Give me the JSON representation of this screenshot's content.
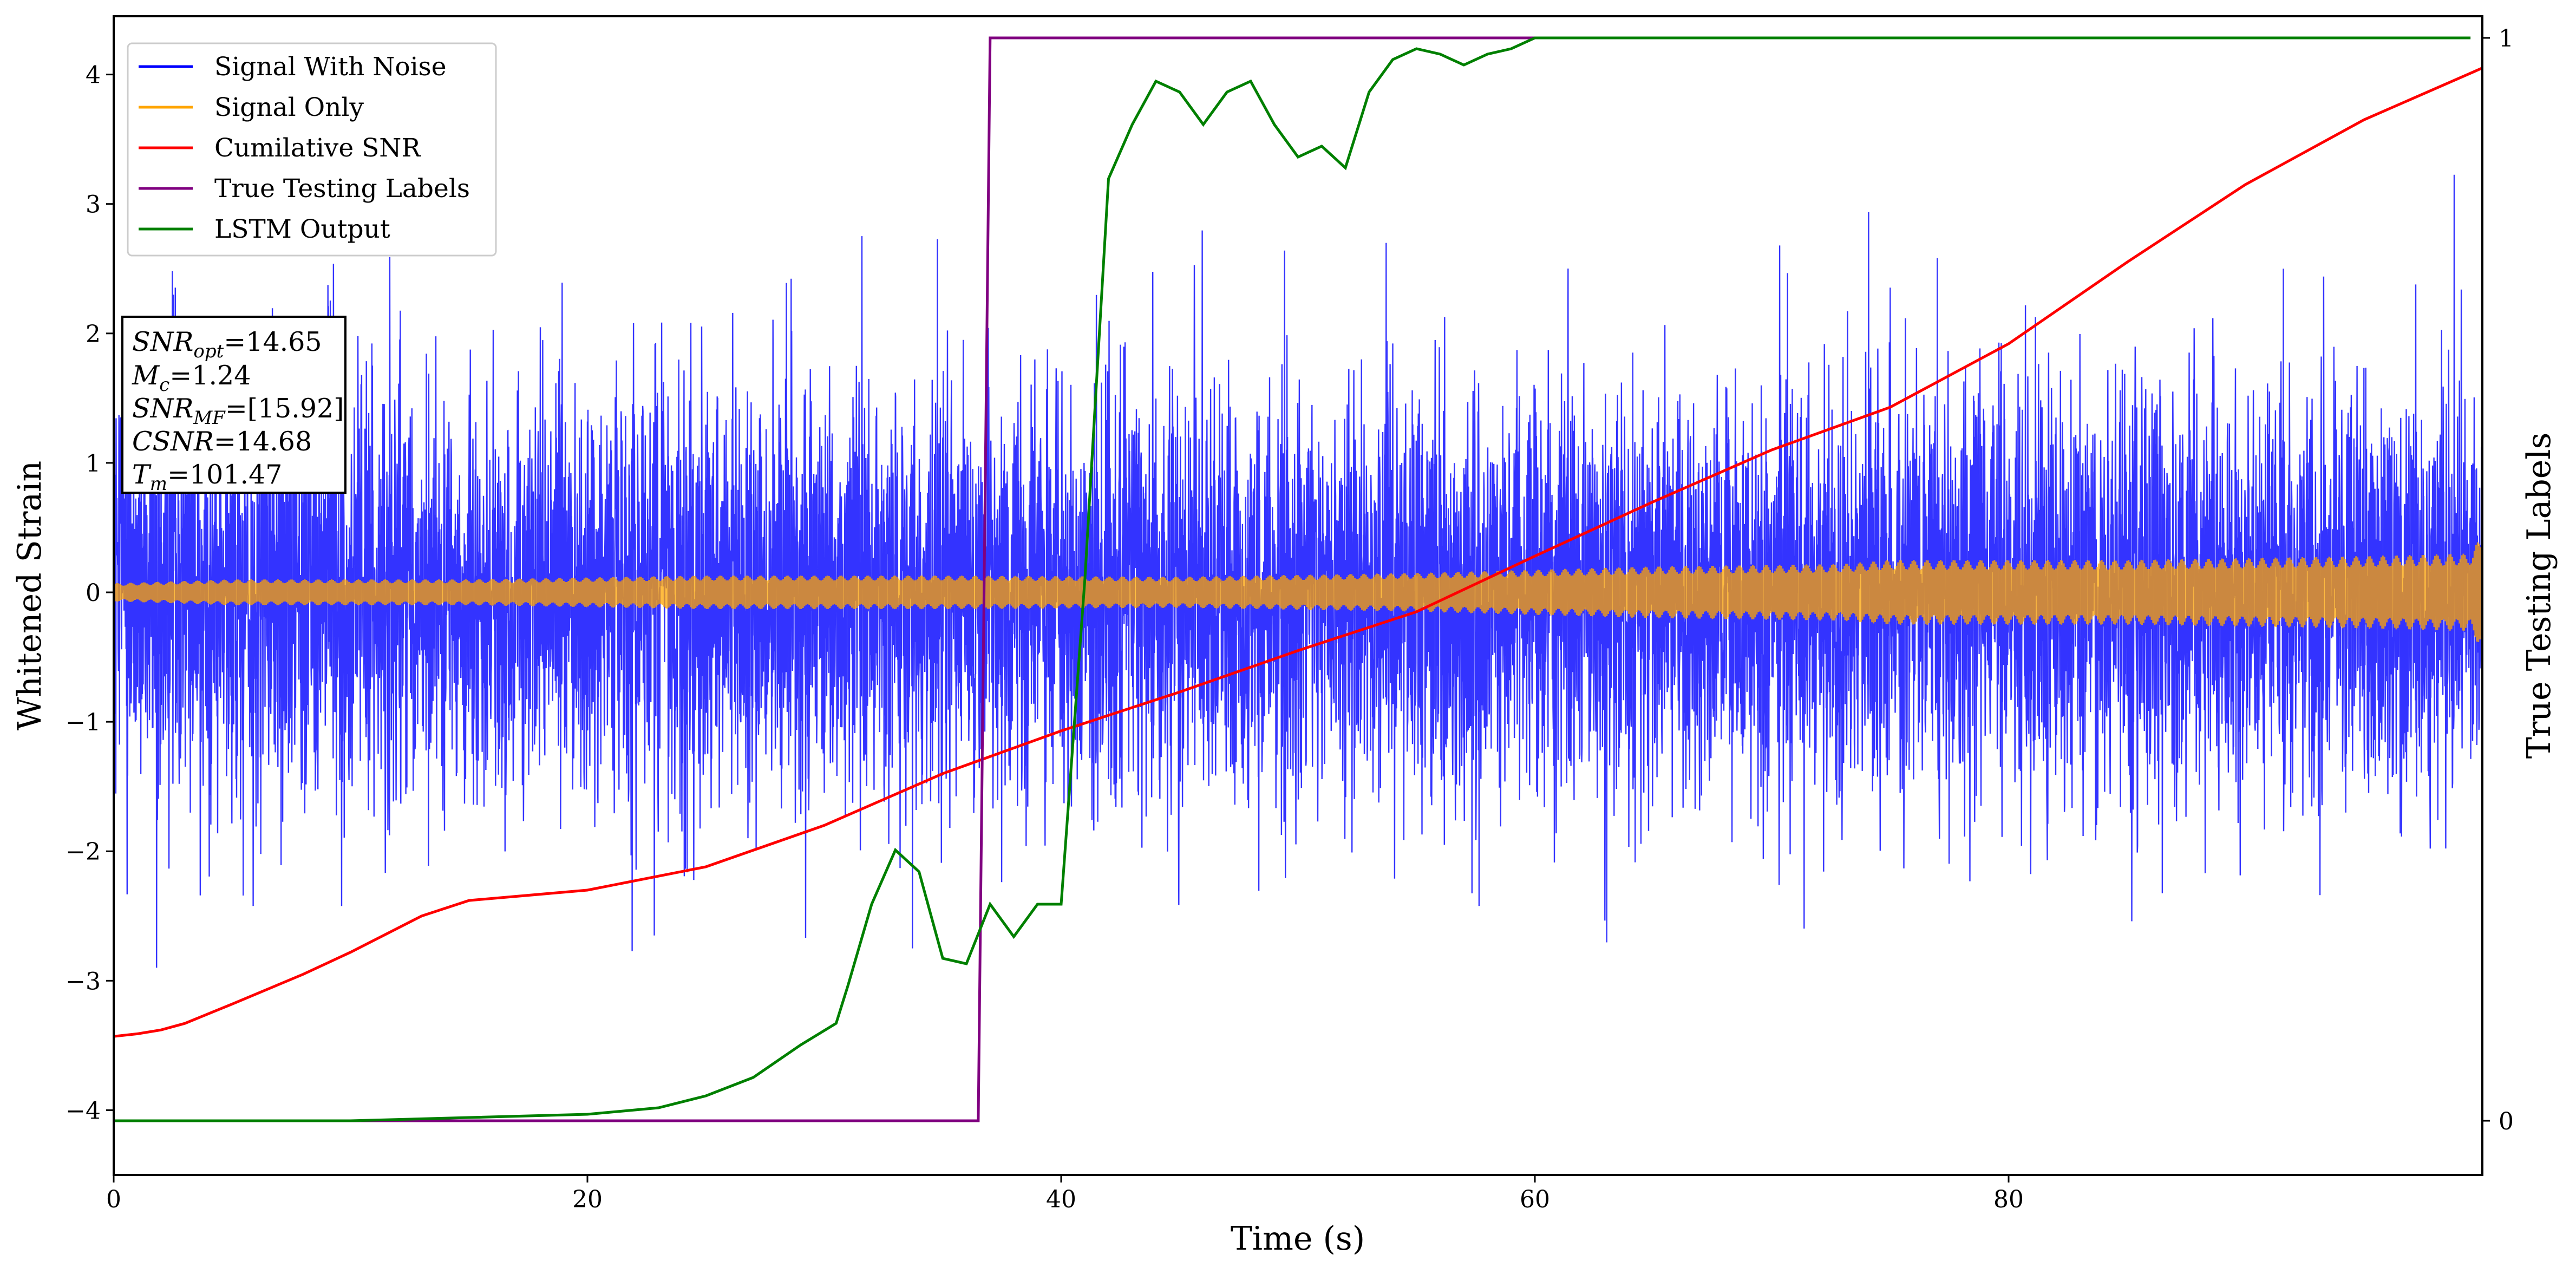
{
  "chart_data": {
    "type": "line",
    "xlabel": "Time (s)",
    "ylabel": "Whitened Strain",
    "y2label": "True Testing Labels",
    "xlim": [
      0,
      100
    ],
    "ylim": [
      -4.5,
      4.45
    ],
    "y2lim": [
      -0.05,
      1.02
    ],
    "x_ticks": [
      0,
      20,
      40,
      60,
      80
    ],
    "y_ticks": [
      -4,
      -3,
      -2,
      -1,
      0,
      1,
      2,
      3,
      4
    ],
    "y2_ticks": [
      0,
      1
    ],
    "legend_position": "upper left",
    "info_box": [
      {
        "base": "SNR",
        "sub": "opt",
        "value": "=14.65"
      },
      {
        "base": "M",
        "sub": "c",
        "value": "=1.24"
      },
      {
        "base": "SNR",
        "sub": "MF",
        "value": "=[15.92]"
      },
      {
        "base": "CSNR",
        "sub": "",
        "value": "=14.68"
      },
      {
        "base": "T",
        "sub": "m",
        "value": "=101.47"
      }
    ],
    "series": [
      {
        "name": "Signal With Noise",
        "color": "#0000ff",
        "axis": "left",
        "kind": "noise",
        "sigma": 0.8,
        "x_range": [
          0,
          100
        ]
      },
      {
        "name": "Signal Only",
        "color": "#ffa500",
        "axis": "left",
        "kind": "band",
        "x": [
          0,
          5,
          15,
          25,
          35,
          45,
          55,
          65,
          73,
          75,
          85,
          95,
          99.5,
          100
        ],
        "amplitude": [
          0.07,
          0.1,
          0.1,
          0.13,
          0.13,
          0.12,
          0.15,
          0.2,
          0.22,
          0.25,
          0.25,
          0.28,
          0.3,
          0.45
        ]
      },
      {
        "name": "Cumilative SNR",
        "color": "#ff0000",
        "axis": "left",
        "x": [
          0,
          1,
          2,
          3,
          5,
          8,
          10,
          13,
          15,
          20,
          25,
          30,
          35,
          40,
          45,
          50,
          55,
          60,
          65,
          70,
          75,
          80,
          85,
          90,
          95,
          100
        ],
        "y": [
          -3.43,
          -3.41,
          -3.38,
          -3.33,
          -3.18,
          -2.95,
          -2.78,
          -2.5,
          -2.38,
          -2.3,
          -2.12,
          -1.8,
          -1.4,
          -1.07,
          -0.77,
          -0.45,
          -0.15,
          0.28,
          0.7,
          1.1,
          1.43,
          1.92,
          2.55,
          3.15,
          3.65,
          4.05
        ]
      },
      {
        "name": "True Testing Labels",
        "color": "#800080",
        "axis": "right",
        "x": [
          0,
          36.5,
          37,
          99.5
        ],
        "y": [
          0,
          0,
          1,
          1
        ]
      },
      {
        "name": "LSTM Output",
        "color": "#008000",
        "axis": "right",
        "x": [
          0,
          10,
          15,
          20,
          23,
          25,
          27,
          29,
          30.5,
          31,
          32,
          33,
          34,
          35,
          36,
          37,
          38,
          39,
          40,
          41,
          42,
          43,
          44,
          45,
          46,
          47,
          48,
          49,
          50,
          51,
          52,
          53,
          54,
          55,
          56,
          57,
          58,
          59,
          60,
          62,
          70,
          80,
          90,
          99.5
        ],
        "y": [
          0,
          0,
          0.003,
          0.006,
          0.012,
          0.023,
          0.04,
          0.07,
          0.09,
          0.125,
          0.2,
          0.25,
          0.23,
          0.15,
          0.145,
          0.2,
          0.17,
          0.2,
          0.2,
          0.5,
          0.87,
          0.92,
          0.96,
          0.95,
          0.92,
          0.95,
          0.96,
          0.92,
          0.89,
          0.9,
          0.88,
          0.95,
          0.98,
          0.99,
          0.985,
          0.975,
          0.985,
          0.99,
          1,
          1,
          1,
          1,
          1,
          1
        ]
      }
    ]
  }
}
